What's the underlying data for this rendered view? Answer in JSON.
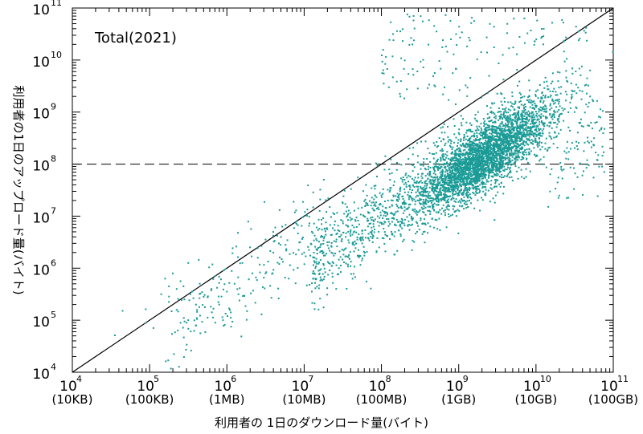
{
  "chart_data": {
    "type": "scatter",
    "title": "",
    "annotation": "Total(2021)",
    "xlabel": "利用者の 1日のダウンロード量(バイト)",
    "ylabel": "利用者の1日のアップロード量(バイト)",
    "x_scale": "log",
    "y_scale": "log",
    "xlim": [
      10000,
      100000000000
    ],
    "ylim": [
      10000,
      100000000000
    ],
    "x_ticks": [
      {
        "value": 10000,
        "label": "10",
        "exp": "4",
        "unit": "(10KB)"
      },
      {
        "value": 100000,
        "label": "10",
        "exp": "5",
        "unit": "(100KB)"
      },
      {
        "value": 1000000,
        "label": "10",
        "exp": "6",
        "unit": "(1MB)"
      },
      {
        "value": 10000000,
        "label": "10",
        "exp": "7",
        "unit": "(10MB)"
      },
      {
        "value": 100000000,
        "label": "10",
        "exp": "8",
        "unit": "(100MB)"
      },
      {
        "value": 1000000000,
        "label": "10",
        "exp": "9",
        "unit": "(1GB)"
      },
      {
        "value": 10000000000,
        "label": "10",
        "exp": "10",
        "unit": "(10GB)"
      },
      {
        "value": 100000000000,
        "label": "10",
        "exp": "11",
        "unit": "(100GB)"
      }
    ],
    "y_ticks": [
      {
        "value": 10000,
        "label": "10",
        "exp": "4"
      },
      {
        "value": 100000,
        "label": "10",
        "exp": "5"
      },
      {
        "value": 1000000,
        "label": "10",
        "exp": "6"
      },
      {
        "value": 10000000,
        "label": "10",
        "exp": "7"
      },
      {
        "value": 100000000,
        "label": "10",
        "exp": "8"
      },
      {
        "value": 1000000000,
        "label": "10",
        "exp": "9"
      },
      {
        "value": 10000000000,
        "label": "10",
        "exp": "10"
      },
      {
        "value": 100000000000,
        "label": "10",
        "exp": "11"
      }
    ],
    "reference_lines": [
      {
        "kind": "diagonal",
        "equation": "y = x",
        "style": "solid"
      },
      {
        "kind": "horizontal",
        "y": 100000000,
        "style": "dashed"
      }
    ],
    "point_color": "#1a9b96",
    "grid": false,
    "series": [
      {
        "points_log10": [
          [
            4.55,
            4.71
          ],
          [
            4.65,
            5.18
          ],
          [
            4.95,
            5.21
          ],
          [
            4.95,
            4.95
          ],
          [
            5.05,
            4.85
          ],
          [
            5.15,
            5.5
          ],
          [
            5.2,
            5.8
          ],
          [
            5.25,
            5.65
          ],
          [
            5.25,
            5.35
          ],
          [
            5.3,
            5.9
          ],
          [
            5.35,
            5.2
          ],
          [
            5.35,
            5.6
          ],
          [
            5.4,
            4.95
          ],
          [
            5.4,
            5.75
          ],
          [
            5.45,
            5.4
          ],
          [
            5.5,
            6.1
          ],
          [
            5.5,
            5.0
          ],
          [
            5.55,
            5.55
          ],
          [
            5.6,
            4.9
          ],
          [
            5.6,
            5.3
          ],
          [
            5.65,
            5.7
          ],
          [
            5.7,
            5.45
          ],
          [
            5.75,
            5.05
          ],
          [
            5.8,
            5.6
          ],
          [
            5.85,
            5.85
          ],
          [
            5.9,
            5.3
          ],
          [
            5.95,
            5.0
          ],
          [
            6.0,
            5.55
          ],
          [
            6.05,
            5.15
          ],
          [
            6.1,
            5.7
          ],
          [
            6.2,
            6.1
          ],
          [
            6.3,
            6.4
          ],
          [
            6.4,
            6.2
          ],
          [
            6.5,
            6.55
          ],
          [
            6.5,
            5.9
          ],
          [
            6.6,
            6.3
          ],
          [
            6.7,
            6.6
          ],
          [
            6.8,
            5.8
          ],
          [
            6.9,
            6.9
          ],
          [
            7.0,
            6.3
          ],
          [
            7.1,
            5.55
          ],
          [
            7.1,
            6.7
          ],
          [
            7.2,
            7.1
          ],
          [
            7.3,
            6.5
          ],
          [
            7.4,
            6.9
          ],
          [
            7.45,
            6.0
          ],
          [
            7.5,
            7.25
          ],
          [
            7.6,
            6.7
          ],
          [
            7.7,
            7.15
          ],
          [
            7.8,
            7.6
          ],
          [
            7.9,
            6.9
          ],
          [
            8.0,
            7.4
          ],
          [
            8.1,
            7.9
          ],
          [
            8.2,
            7.3
          ],
          [
            8.3,
            7.7
          ],
          [
            8.35,
            8.1
          ],
          [
            8.4,
            7.5
          ],
          [
            8.5,
            8.0
          ],
          [
            8.55,
            7.4
          ],
          [
            8.6,
            8.3
          ],
          [
            8.7,
            7.8
          ],
          [
            8.75,
            8.5
          ],
          [
            8.8,
            8.1
          ],
          [
            8.9,
            8.4
          ],
          [
            8.95,
            7.9
          ],
          [
            9.0,
            8.6
          ],
          [
            9.05,
            8.2
          ],
          [
            9.1,
            8.8
          ],
          [
            9.15,
            8.3
          ],
          [
            9.2,
            8.55
          ],
          [
            9.25,
            9.0
          ],
          [
            9.3,
            8.4
          ],
          [
            9.35,
            8.7
          ],
          [
            9.4,
            8.9
          ],
          [
            9.45,
            8.2
          ],
          [
            9.5,
            8.6
          ],
          [
            9.55,
            9.2
          ],
          [
            9.6,
            8.5
          ],
          [
            9.65,
            8.85
          ],
          [
            9.7,
            9.1
          ],
          [
            9.75,
            8.4
          ],
          [
            9.8,
            8.8
          ],
          [
            9.85,
            9.3
          ],
          [
            9.9,
            8.7
          ],
          [
            9.95,
            9.0
          ],
          [
            10.0,
            9.4
          ],
          [
            10.05,
            8.6
          ],
          [
            10.1,
            9.1
          ],
          [
            10.15,
            9.5
          ],
          [
            10.2,
            8.9
          ],
          [
            10.3,
            9.2
          ],
          [
            10.4,
            9.6
          ],
          [
            10.5,
            9.0
          ],
          [
            10.6,
            9.4
          ],
          [
            10.7,
            9.8
          ],
          [
            8.4,
            10.3
          ],
          [
            8.9,
            10.4
          ],
          [
            9.2,
            10.75
          ],
          [
            10.1,
            10.6
          ],
          [
            9.85,
            10.8
          ]
        ],
        "note": "representative sample of the dense scatter (log10 of bytes)"
      }
    ]
  }
}
